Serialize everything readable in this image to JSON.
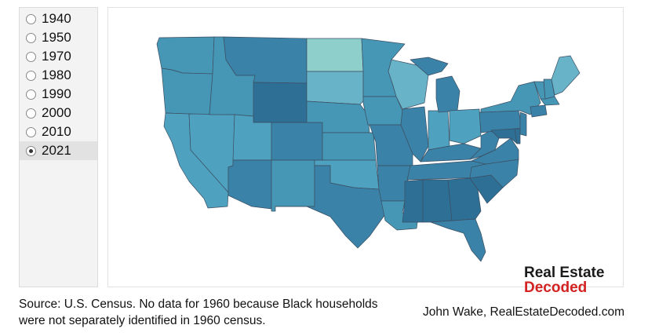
{
  "years": [
    {
      "label": "1940",
      "selected": false
    },
    {
      "label": "1950",
      "selected": false
    },
    {
      "label": "1970",
      "selected": false
    },
    {
      "label": "1980",
      "selected": false
    },
    {
      "label": "1990",
      "selected": false
    },
    {
      "label": "2000",
      "selected": false
    },
    {
      "label": "2010",
      "selected": false
    },
    {
      "label": "2021",
      "selected": true
    }
  ],
  "map": {
    "fills": {
      "darkest": "#2e6f96",
      "dark": "#3a82a7",
      "mid": "#4696b5",
      "mid_light": "#4ea2bf",
      "light": "#68b3c8",
      "lightest": "#8ecfcc"
    }
  },
  "logo": {
    "line1": "Real Estate",
    "line2": "Decoded",
    "line2_color": "#d22222"
  },
  "source_text": "Source: U.S. Census. No data for 1960 because Black households were not separately identified in 1960 census.",
  "credit": "John Wake, RealEstateDecoded.com"
}
